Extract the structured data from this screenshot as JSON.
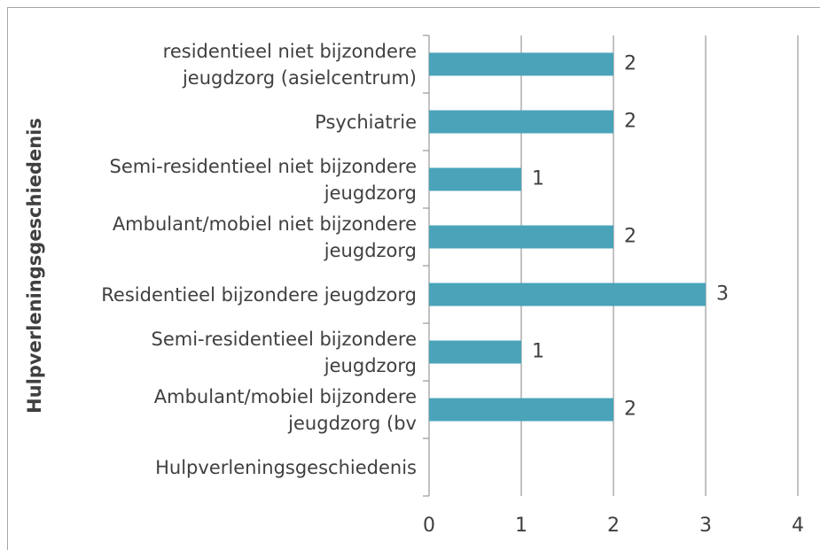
{
  "chart_data": {
    "type": "bar",
    "orientation": "horizontal",
    "y_label": "Hulpverleningsgeschiedenis",
    "categories": [
      "residentieel niet bijzondere jeugdzorg (asielcentrum)",
      "Psychiatrie",
      "Semi-residentieel niet bijzondere jeugdzorg",
      "Ambulant/mobiel niet bijzondere jeugdzorg",
      "Residentieel bijzondere jeugdzorg",
      "Semi-residentieel bijzondere jeugdzorg",
      "Ambulant/mobiel bijzondere jeugdzorg (bv",
      "Hulpverleningsgeschiedenis"
    ],
    "values": [
      2,
      2,
      1,
      2,
      3,
      1,
      2,
      null
    ],
    "color": "#4aa3b9",
    "xlim": [
      0,
      4
    ],
    "xticks": [
      0,
      1,
      2,
      3,
      4
    ],
    "grid": true
  }
}
